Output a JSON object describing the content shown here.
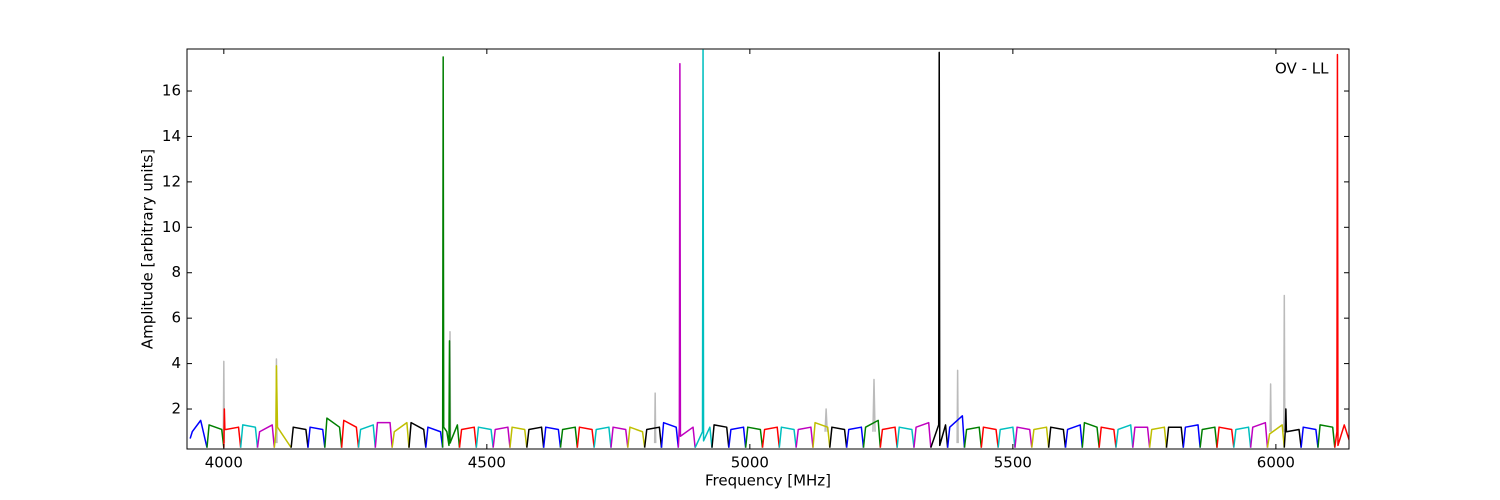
{
  "chart_data": {
    "type": "line",
    "xlabel": "Frequency [MHz]",
    "ylabel": "Amplitude [arbitrary units]",
    "annotation": "OV - LL",
    "xlim": [
      3930,
      6139
    ],
    "ylim": [
      0.24,
      17.85
    ],
    "xticks": [
      4000,
      4500,
      5000,
      5500,
      6000
    ],
    "yticks": [
      2,
      4,
      6,
      8,
      10,
      12,
      14,
      16
    ],
    "series": [
      {
        "color": "#bbbbbb",
        "x": [
          3999,
          4000,
          4001
        ],
        "values": [
          0.5,
          4.1,
          0.5
        ]
      },
      {
        "color": "#bbbbbb",
        "x": [
          4099,
          4100,
          4101
        ],
        "values": [
          0.5,
          4.2,
          0.5
        ]
      },
      {
        "color": "#bbbbbb",
        "x": [
          4429,
          4430,
          4431
        ],
        "values": [
          0.5,
          5.4,
          0.5
        ]
      },
      {
        "color": "#bbbbbb",
        "x": [
          4819,
          4820,
          4821
        ],
        "values": [
          0.5,
          2.7,
          0.5
        ]
      },
      {
        "color": "#bbbbbb",
        "x": [
          5143,
          5145,
          5147
        ],
        "values": [
          1.0,
          2.0,
          1.0
        ]
      },
      {
        "color": "#bbbbbb",
        "x": [
          5234,
          5236,
          5238
        ],
        "values": [
          1.0,
          3.3,
          1.0
        ]
      },
      {
        "color": "#bbbbbb",
        "x": [
          5394,
          5395,
          5396
        ],
        "values": [
          0.5,
          3.7,
          0.5
        ]
      },
      {
        "color": "#bbbbbb",
        "x": [
          5989,
          5990,
          5991
        ],
        "values": [
          1.0,
          3.1,
          1.0
        ]
      },
      {
        "color": "#bbbbbb",
        "x": [
          6015,
          6016,
          6017
        ],
        "values": [
          1.0,
          7.0,
          1.0
        ]
      },
      {
        "color": "#0000ff",
        "x": [
          3936,
          3940,
          3956,
          3968
        ],
        "values": [
          0.7,
          1.0,
          1.5,
          0.3
        ]
      },
      {
        "color": "#007f00",
        "x": [
          3968,
          3972,
          3996,
          4000
        ],
        "values": [
          0.3,
          1.3,
          1.1,
          0.3
        ]
      },
      {
        "color": "#ff0000",
        "x": [
          4000,
          4001,
          4002,
          4004,
          4028,
          4032
        ],
        "values": [
          0.3,
          2.0,
          1.1,
          1.1,
          1.2,
          0.3
        ]
      },
      {
        "color": "#00bfbf",
        "x": [
          4032,
          4036,
          4060,
          4064
        ],
        "values": [
          0.3,
          1.3,
          1.2,
          0.3
        ]
      },
      {
        "color": "#bf00bf",
        "x": [
          4064,
          4068,
          4092,
          4096
        ],
        "values": [
          0.3,
          1.0,
          1.3,
          0.3
        ]
      },
      {
        "color": "#bfbf00",
        "x": [
          4096,
          4099,
          4100,
          4102,
          4128
        ],
        "values": [
          0.3,
          1.0,
          3.9,
          1.2,
          0.3
        ]
      },
      {
        "color": "#000000",
        "x": [
          4128,
          4132,
          4156,
          4160
        ],
        "values": [
          0.3,
          1.2,
          1.1,
          0.3
        ]
      },
      {
        "color": "#0000ff",
        "x": [
          4160,
          4164,
          4188,
          4192
        ],
        "values": [
          0.3,
          1.2,
          1.1,
          0.3
        ]
      },
      {
        "color": "#007f00",
        "x": [
          4192,
          4196,
          4220,
          4224
        ],
        "values": [
          0.3,
          1.6,
          1.2,
          0.3
        ]
      },
      {
        "color": "#ff0000",
        "x": [
          4224,
          4228,
          4252,
          4256
        ],
        "values": [
          0.3,
          1.5,
          1.2,
          0.3
        ]
      },
      {
        "color": "#00bfbf",
        "x": [
          4256,
          4260,
          4284,
          4288
        ],
        "values": [
          0.3,
          1.1,
          1.3,
          0.3
        ]
      },
      {
        "color": "#bf00bf",
        "x": [
          4288,
          4292,
          4316,
          4320
        ],
        "values": [
          0.3,
          1.4,
          1.4,
          0.3
        ]
      },
      {
        "color": "#bfbf00",
        "x": [
          4320,
          4324,
          4348,
          4352
        ],
        "values": [
          0.3,
          1.0,
          1.4,
          0.3
        ]
      },
      {
        "color": "#000000",
        "x": [
          4352,
          4356,
          4380,
          4384
        ],
        "values": [
          0.3,
          1.4,
          1.1,
          0.3
        ]
      },
      {
        "color": "#0000ff",
        "x": [
          4384,
          4388,
          4412,
          4416
        ],
        "values": [
          0.3,
          1.2,
          1.0,
          0.3
        ]
      },
      {
        "color": "#007f00",
        "x": [
          4416,
          4417,
          4418,
          4424,
          4428,
          4429,
          4430,
          4444,
          4448
        ],
        "values": [
          0.3,
          17.5,
          1.2,
          1.0,
          0.4,
          5.0,
          0.5,
          1.3,
          0.3
        ]
      },
      {
        "color": "#ff0000",
        "x": [
          4448,
          4452,
          4476,
          4480
        ],
        "values": [
          0.3,
          1.1,
          1.2,
          0.3
        ]
      },
      {
        "color": "#00bfbf",
        "x": [
          4480,
          4484,
          4508,
          4512
        ],
        "values": [
          0.3,
          1.2,
          1.1,
          0.3
        ]
      },
      {
        "color": "#bf00bf",
        "x": [
          4512,
          4516,
          4540,
          4544
        ],
        "values": [
          0.3,
          1.1,
          1.2,
          0.3
        ]
      },
      {
        "color": "#bfbf00",
        "x": [
          4544,
          4548,
          4572,
          4576
        ],
        "values": [
          0.3,
          1.2,
          1.1,
          0.3
        ]
      },
      {
        "color": "#000000",
        "x": [
          4576,
          4580,
          4604,
          4608
        ],
        "values": [
          0.3,
          1.1,
          1.2,
          0.3
        ]
      },
      {
        "color": "#0000ff",
        "x": [
          4608,
          4612,
          4636,
          4640
        ],
        "values": [
          0.3,
          1.2,
          1.1,
          0.3
        ]
      },
      {
        "color": "#007f00",
        "x": [
          4640,
          4644,
          4668,
          4672
        ],
        "values": [
          0.3,
          1.1,
          1.2,
          0.3
        ]
      },
      {
        "color": "#ff0000",
        "x": [
          4672,
          4676,
          4700,
          4704
        ],
        "values": [
          0.3,
          1.2,
          1.1,
          0.3
        ]
      },
      {
        "color": "#00bfbf",
        "x": [
          4704,
          4708,
          4732,
          4736
        ],
        "values": [
          0.3,
          1.1,
          1.2,
          0.3
        ]
      },
      {
        "color": "#bf00bf",
        "x": [
          4736,
          4740,
          4764,
          4768
        ],
        "values": [
          0.3,
          1.2,
          1.1,
          0.3
        ]
      },
      {
        "color": "#bfbf00",
        "x": [
          4768,
          4772,
          4796,
          4800
        ],
        "values": [
          0.3,
          1.2,
          1.0,
          0.3
        ]
      },
      {
        "color": "#000000",
        "x": [
          4800,
          4804,
          4828,
          4832
        ],
        "values": [
          0.3,
          1.1,
          1.2,
          0.3
        ]
      },
      {
        "color": "#0000ff",
        "x": [
          4832,
          4836,
          4860,
          4864
        ],
        "values": [
          0.3,
          1.4,
          1.2,
          0.3
        ]
      },
      {
        "color": "#bf00bf",
        "x": [
          4864,
          4866,
          4867,
          4868,
          4892,
          4896
        ],
        "values": [
          0.3,
          1.2,
          17.2,
          0.8,
          1.2,
          0.3
        ]
      },
      {
        "color": "#00bfbf",
        "x": [
          4896,
          4910,
          4911,
          4912,
          4924,
          4928
        ],
        "values": [
          0.3,
          1.0,
          17.8,
          0.6,
          1.2,
          0.3
        ]
      },
      {
        "color": "#000000",
        "x": [
          4928,
          4932,
          4956,
          4960
        ],
        "values": [
          0.3,
          1.3,
          1.2,
          0.3
        ]
      },
      {
        "color": "#0000ff",
        "x": [
          4960,
          4964,
          4988,
          4992
        ],
        "values": [
          0.3,
          1.1,
          1.2,
          0.3
        ]
      },
      {
        "color": "#007f00",
        "x": [
          4992,
          4996,
          5020,
          5024
        ],
        "values": [
          0.3,
          1.2,
          1.1,
          0.3
        ]
      },
      {
        "color": "#ff0000",
        "x": [
          5024,
          5028,
          5052,
          5056
        ],
        "values": [
          0.3,
          1.1,
          1.2,
          0.3
        ]
      },
      {
        "color": "#00bfbf",
        "x": [
          5056,
          5060,
          5084,
          5088
        ],
        "values": [
          0.3,
          1.2,
          1.1,
          0.3
        ]
      },
      {
        "color": "#bf00bf",
        "x": [
          5088,
          5092,
          5116,
          5120
        ],
        "values": [
          0.3,
          1.1,
          1.2,
          0.3
        ]
      },
      {
        "color": "#bfbf00",
        "x": [
          5120,
          5124,
          5148,
          5152
        ],
        "values": [
          0.3,
          1.4,
          1.2,
          0.3
        ]
      },
      {
        "color": "#000000",
        "x": [
          5152,
          5156,
          5180,
          5184
        ],
        "values": [
          0.3,
          1.2,
          1.1,
          0.3
        ]
      },
      {
        "color": "#0000ff",
        "x": [
          5184,
          5188,
          5212,
          5216
        ],
        "values": [
          0.3,
          1.1,
          1.2,
          0.3
        ]
      },
      {
        "color": "#007f00",
        "x": [
          5216,
          5220,
          5244,
          5248
        ],
        "values": [
          0.3,
          1.2,
          1.5,
          0.3
        ]
      },
      {
        "color": "#ff0000",
        "x": [
          5248,
          5252,
          5276,
          5280
        ],
        "values": [
          0.3,
          1.1,
          1.2,
          0.3
        ]
      },
      {
        "color": "#00bfbf",
        "x": [
          5280,
          5284,
          5308,
          5312
        ],
        "values": [
          0.3,
          1.2,
          1.1,
          0.3
        ]
      },
      {
        "color": "#bf00bf",
        "x": [
          5312,
          5316,
          5340,
          5344
        ],
        "values": [
          0.3,
          1.2,
          1.4,
          0.3
        ]
      },
      {
        "color": "#000000",
        "x": [
          5344,
          5359,
          5360,
          5361,
          5372,
          5376
        ],
        "values": [
          0.3,
          1.3,
          17.7,
          0.4,
          1.3,
          0.3
        ]
      },
      {
        "color": "#0000ff",
        "x": [
          5376,
          5380,
          5404,
          5408
        ],
        "values": [
          0.3,
          1.2,
          1.7,
          0.3
        ]
      },
      {
        "color": "#007f00",
        "x": [
          5408,
          5412,
          5436,
          5440
        ],
        "values": [
          0.3,
          1.1,
          1.2,
          0.3
        ]
      },
      {
        "color": "#ff0000",
        "x": [
          5440,
          5444,
          5468,
          5472
        ],
        "values": [
          0.3,
          1.2,
          1.1,
          0.3
        ]
      },
      {
        "color": "#00bfbf",
        "x": [
          5472,
          5476,
          5500,
          5504
        ],
        "values": [
          0.3,
          1.1,
          1.2,
          0.3
        ]
      },
      {
        "color": "#bf00bf",
        "x": [
          5504,
          5508,
          5532,
          5536
        ],
        "values": [
          0.3,
          1.2,
          1.1,
          0.3
        ]
      },
      {
        "color": "#bfbf00",
        "x": [
          5536,
          5540,
          5564,
          5568
        ],
        "values": [
          0.3,
          1.1,
          1.2,
          0.3
        ]
      },
      {
        "color": "#000000",
        "x": [
          5568,
          5572,
          5596,
          5600
        ],
        "values": [
          0.3,
          1.2,
          1.1,
          0.3
        ]
      },
      {
        "color": "#0000ff",
        "x": [
          5600,
          5604,
          5628,
          5632
        ],
        "values": [
          0.3,
          1.1,
          1.3,
          0.3
        ]
      },
      {
        "color": "#007f00",
        "x": [
          5632,
          5636,
          5660,
          5664
        ],
        "values": [
          0.3,
          1.4,
          1.2,
          0.3
        ]
      },
      {
        "color": "#ff0000",
        "x": [
          5664,
          5668,
          5692,
          5696
        ],
        "values": [
          0.3,
          1.2,
          1.1,
          0.3
        ]
      },
      {
        "color": "#00bfbf",
        "x": [
          5696,
          5700,
          5724,
          5728
        ],
        "values": [
          0.3,
          1.1,
          1.3,
          0.3
        ]
      },
      {
        "color": "#bf00bf",
        "x": [
          5728,
          5732,
          5756,
          5760
        ],
        "values": [
          0.3,
          1.2,
          1.2,
          0.3
        ]
      },
      {
        "color": "#bfbf00",
        "x": [
          5760,
          5764,
          5788,
          5792
        ],
        "values": [
          0.3,
          1.1,
          1.2,
          0.3
        ]
      },
      {
        "color": "#000000",
        "x": [
          5792,
          5796,
          5820,
          5824
        ],
        "values": [
          0.3,
          1.2,
          1.2,
          0.3
        ]
      },
      {
        "color": "#0000ff",
        "x": [
          5824,
          5828,
          5852,
          5856
        ],
        "values": [
          0.3,
          1.2,
          1.3,
          0.3
        ]
      },
      {
        "color": "#007f00",
        "x": [
          5856,
          5860,
          5884,
          5888
        ],
        "values": [
          0.3,
          1.1,
          1.2,
          0.3
        ]
      },
      {
        "color": "#ff0000",
        "x": [
          5888,
          5892,
          5916,
          5920
        ],
        "values": [
          0.3,
          1.2,
          1.1,
          0.3
        ]
      },
      {
        "color": "#00bfbf",
        "x": [
          5920,
          5924,
          5948,
          5952
        ],
        "values": [
          0.3,
          1.1,
          1.2,
          0.3
        ]
      },
      {
        "color": "#bf00bf",
        "x": [
          5952,
          5956,
          5980,
          5984
        ],
        "values": [
          0.3,
          1.2,
          1.4,
          0.3
        ]
      },
      {
        "color": "#bfbf00",
        "x": [
          5984,
          5988,
          6012,
          6016
        ],
        "values": [
          0.3,
          0.9,
          1.3,
          0.3
        ]
      },
      {
        "color": "#000000",
        "x": [
          6016,
          6018,
          6019,
          6020,
          6044,
          6048
        ],
        "values": [
          0.3,
          1.1,
          2.0,
          1.0,
          1.1,
          0.3
        ]
      },
      {
        "color": "#0000ff",
        "x": [
          6048,
          6052,
          6076,
          6080
        ],
        "values": [
          0.3,
          1.2,
          1.1,
          0.3
        ]
      },
      {
        "color": "#007f00",
        "x": [
          6080,
          6084,
          6108,
          6112
        ],
        "values": [
          0.3,
          1.3,
          1.2,
          0.3
        ]
      },
      {
        "color": "#ff0000",
        "x": [
          6112,
          6116,
          6117,
          6118,
          6130,
          6144
        ],
        "values": [
          0.3,
          1.0,
          17.6,
          0.4,
          1.3,
          0.3
        ]
      }
    ]
  }
}
